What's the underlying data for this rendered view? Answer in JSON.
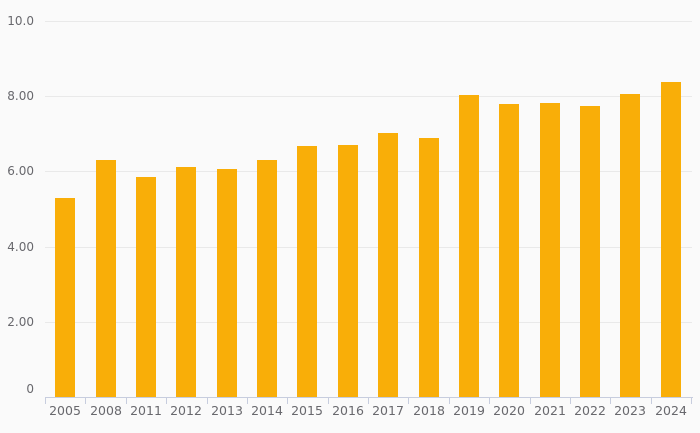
{
  "chart_data": {
    "type": "bar",
    "title": "",
    "xlabel": "",
    "ylabel": "",
    "categories": [
      "2005",
      "2008",
      "2011",
      "2012",
      "2013",
      "2014",
      "2015",
      "2016",
      "2017",
      "2018",
      "2019",
      "2020",
      "2021",
      "2022",
      "2023",
      "2024"
    ],
    "values": [
      5.3,
      6.3,
      5.86,
      6.12,
      6.06,
      6.3,
      6.67,
      6.7,
      7.01,
      6.89,
      8.02,
      7.8,
      7.81,
      7.73,
      8.05,
      8.38
    ],
    "ylim": [
      0,
      10
    ],
    "yticks": [
      {
        "value": 0,
        "label": "0"
      },
      {
        "value": 2,
        "label": "2.00"
      },
      {
        "value": 4,
        "label": "4.00"
      },
      {
        "value": 6,
        "label": "6.00"
      },
      {
        "value": 8,
        "label": "8.00"
      },
      {
        "value": 10,
        "label": "10.0"
      }
    ],
    "grid": true,
    "legend": false,
    "colors": {
      "bar": "#f9ae08",
      "background": "#fafafa",
      "gridline": "#e9e9e9",
      "axis": "#c7cdde",
      "label": "#68686d"
    }
  }
}
